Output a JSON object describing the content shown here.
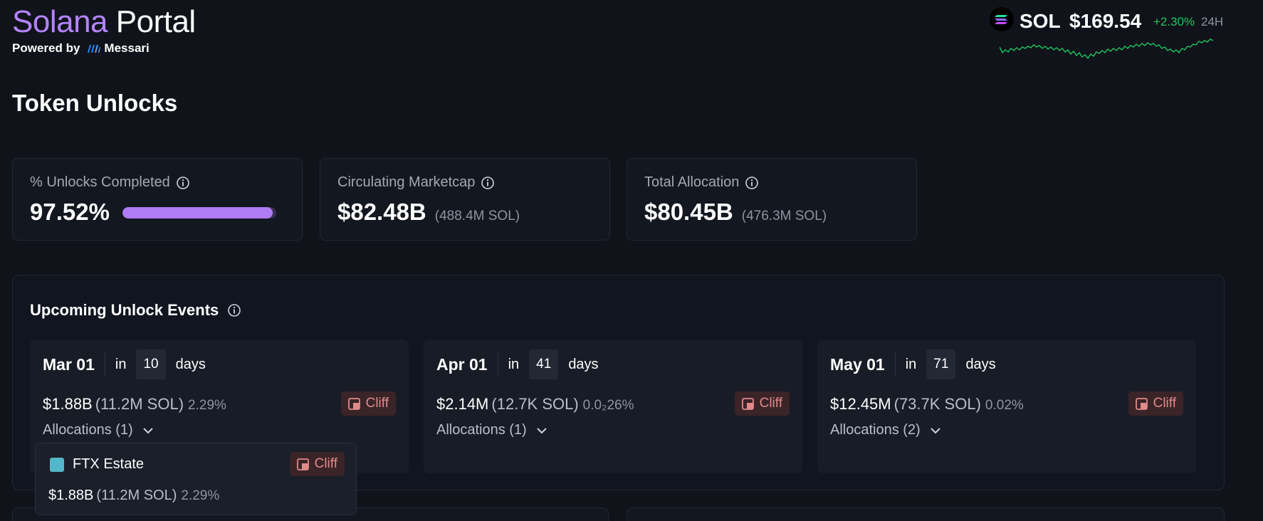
{
  "header": {
    "brand_part1": "Solana",
    "brand_part2": "Portal",
    "powered_by": "Powered by",
    "messari": "Messari",
    "ticker": {
      "symbol": "SOL",
      "price": "$169.54",
      "change": "+2.30%",
      "period": "24H"
    }
  },
  "page_title": "Token Unlocks",
  "stats": [
    {
      "label": "% Unlocks Completed",
      "value": "97.52%",
      "progress": 0.9752
    },
    {
      "label": "Circulating Marketcap",
      "value": "$82.48B",
      "sub": "(488.4M SOL)"
    },
    {
      "label": "Total Allocation",
      "value": "$80.45B",
      "sub": "(476.3M SOL)"
    }
  ],
  "upcoming": {
    "title": "Upcoming Unlock Events",
    "events": [
      {
        "date": "Mar 01",
        "in": "in",
        "days_num": "10",
        "days": "days",
        "usd": "$1.88B",
        "sol": "(11.2M SOL)",
        "pct": "2.29%",
        "type": "Cliff",
        "allocations": "Allocations (1)"
      },
      {
        "date": "Apr 01",
        "in": "in",
        "days_num": "41",
        "days": "days",
        "usd": "$2.14M",
        "sol": "(12.7K SOL)",
        "pct": "0.0₂26%",
        "type": "Cliff",
        "allocations": "Allocations (1)"
      },
      {
        "date": "May 01",
        "in": "in",
        "days_num": "71",
        "days": "days",
        "usd": "$12.45M",
        "sol": "(73.7K SOL)",
        "pct": "0.02%",
        "type": "Cliff",
        "allocations": "Allocations (2)"
      }
    ]
  },
  "popover": {
    "name": "FTX Estate",
    "type": "Cliff",
    "usd": "$1.88B",
    "sol": "(11.2M SOL)",
    "pct": "2.29%",
    "swatch_color": "#52b7c8"
  },
  "colors": {
    "brand_purple": "#b484ff",
    "positive": "#22c55e",
    "cliff_text": "#e08a8a",
    "background": "#10131a"
  },
  "icons": [
    "messari-logo-icon",
    "solana-logo-icon",
    "info-icon",
    "cliff-icon",
    "chevron-down-icon"
  ]
}
